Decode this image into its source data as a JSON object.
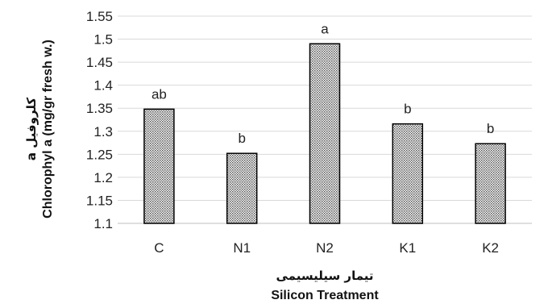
{
  "chart_data": {
    "type": "bar",
    "categories": [
      "C",
      "N1",
      "N2",
      "K1",
      "K2"
    ],
    "values": [
      1.348,
      1.252,
      1.49,
      1.316,
      1.273
    ],
    "data_labels": [
      "ab",
      "b",
      "a",
      "b",
      "b"
    ],
    "xlabel_fa": "تیمار سیلیسیمی",
    "xlabel": "Silicon Treatment",
    "ylabel_fa": "کلروفیل a",
    "ylabel": "Chlorophyl a (mg/gr fresh w.)",
    "ylim": [
      1.1,
      1.55
    ],
    "yticks": [
      "1.1",
      "1.15",
      "1.2",
      "1.25",
      "1.3",
      "1.35",
      "1.4",
      "1.45",
      "1.5",
      "1.55"
    ],
    "grid": true,
    "bar_fill": "dotted-gray-pattern",
    "bar_stroke": "#000000",
    "grid_color": "#d9d9d9"
  }
}
